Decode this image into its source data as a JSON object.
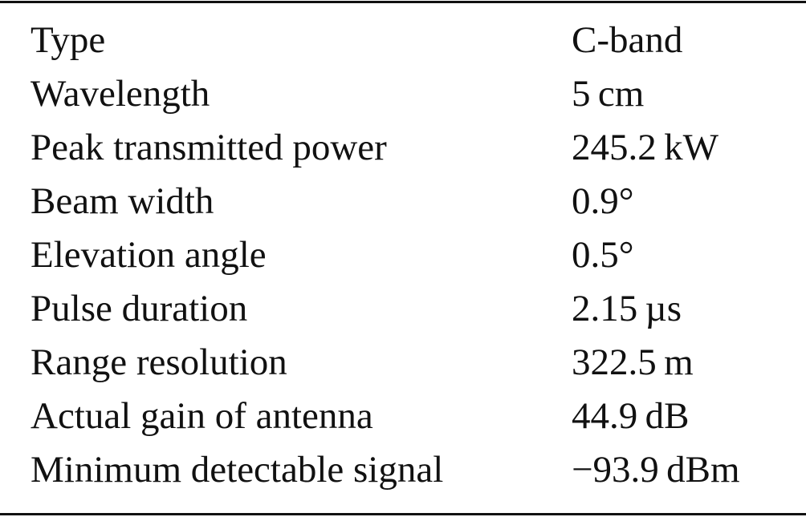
{
  "table": {
    "rows": [
      [
        "Type",
        "C-band"
      ],
      [
        "Wavelength",
        "5 cm"
      ],
      [
        "Peak transmitted power",
        "245.2 kW"
      ],
      [
        "Beam width",
        "0.9°"
      ],
      [
        "Elevation angle",
        "0.5°"
      ],
      [
        "Pulse duration",
        "2.15 µs"
      ],
      [
        "Range resolution",
        "322.5 m"
      ],
      [
        "Actual gain of antenna",
        "44.9 dB"
      ],
      [
        "Minimum detectable signal",
        "−93.9 dBm"
      ]
    ]
  }
}
